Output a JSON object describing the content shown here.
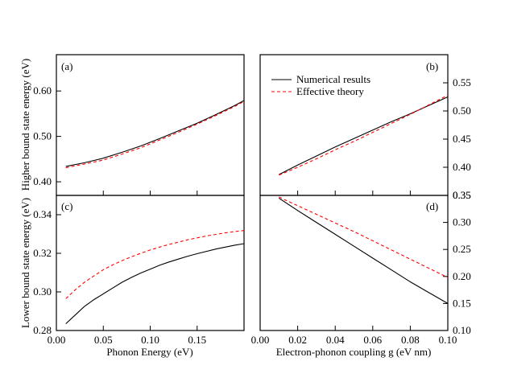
{
  "colors": {
    "numerical": "#000000",
    "effective": "#ff0000"
  },
  "chart_data": [
    {
      "type": "line",
      "panel": "a",
      "panel_label": "(a)",
      "ylabel": "Higher bound state energy (eV)",
      "xlim": [
        0.0,
        0.2
      ],
      "ylim": [
        0.37,
        0.68
      ],
      "yticks": [
        0.4,
        0.5,
        0.6
      ],
      "ytick_labels": [
        "0.40",
        "0.50",
        "0.60"
      ],
      "xticks": [
        0.0,
        0.05,
        0.1,
        0.15
      ],
      "series": [
        {
          "name": "Numerical results",
          "style": "solid",
          "x": [
            0.01,
            0.03,
            0.05,
            0.07,
            0.09,
            0.11,
            0.13,
            0.15,
            0.17,
            0.19,
            0.2
          ],
          "y": [
            0.434,
            0.442,
            0.452,
            0.465,
            0.479,
            0.495,
            0.512,
            0.529,
            0.548,
            0.568,
            0.579
          ]
        },
        {
          "name": "Effective theory",
          "style": "dashed",
          "x": [
            0.01,
            0.03,
            0.05,
            0.07,
            0.09,
            0.11,
            0.13,
            0.15,
            0.17,
            0.19,
            0.2
          ],
          "y": [
            0.431,
            0.439,
            0.448,
            0.461,
            0.475,
            0.492,
            0.509,
            0.527,
            0.546,
            0.566,
            0.577
          ]
        }
      ]
    },
    {
      "type": "line",
      "panel": "b",
      "panel_label": "(b)",
      "xlim": [
        0.0,
        0.1
      ],
      "ylim": [
        0.35,
        0.6
      ],
      "yticks": [
        0.35,
        0.4,
        0.45,
        0.5,
        0.55
      ],
      "ytick_labels": [
        "0.35",
        "0.40",
        "0.45",
        "0.50",
        "0.55"
      ],
      "xticks": [
        0.0,
        0.02,
        0.04,
        0.06,
        0.08,
        0.1
      ],
      "legend": [
        "Numerical results",
        "Effective theory"
      ],
      "series": [
        {
          "name": "Numerical results",
          "style": "solid",
          "x": [
            0.01,
            0.02,
            0.03,
            0.04,
            0.05,
            0.06,
            0.07,
            0.08,
            0.09,
            0.1
          ],
          "y": [
            0.387,
            0.404,
            0.42,
            0.436,
            0.451,
            0.466,
            0.481,
            0.495,
            0.51,
            0.525
          ]
        },
        {
          "name": "Effective theory",
          "style": "dashed",
          "x": [
            0.01,
            0.02,
            0.03,
            0.04,
            0.05,
            0.06,
            0.07,
            0.08,
            0.09,
            0.1
          ],
          "y": [
            0.386,
            0.4,
            0.415,
            0.431,
            0.446,
            0.462,
            0.478,
            0.494,
            0.511,
            0.528
          ]
        }
      ]
    },
    {
      "type": "line",
      "panel": "c",
      "panel_label": "(c)",
      "ylabel": "Lower bound state energy (eV)",
      "xlabel": "Phonon Energy (eV)",
      "xlim": [
        0.0,
        0.2
      ],
      "ylim": [
        0.28,
        0.35
      ],
      "yticks": [
        0.28,
        0.3,
        0.32,
        0.34
      ],
      "ytick_labels": [
        "0.28",
        "0.30",
        "0.32",
        "0.34"
      ],
      "xticks": [
        0.0,
        0.05,
        0.1,
        0.15
      ],
      "xtick_labels": [
        "0.00",
        "0.05",
        "0.10",
        "0.15"
      ],
      "series": [
        {
          "name": "Numerical results",
          "style": "solid",
          "x": [
            0.01,
            0.02,
            0.03,
            0.04,
            0.05,
            0.06,
            0.07,
            0.08,
            0.09,
            0.1,
            0.11,
            0.12,
            0.13,
            0.14,
            0.15,
            0.16,
            0.17,
            0.18,
            0.19,
            0.2
          ],
          "y": [
            0.2835,
            0.288,
            0.2925,
            0.296,
            0.299,
            0.302,
            0.305,
            0.3075,
            0.3098,
            0.3118,
            0.3138,
            0.3155,
            0.317,
            0.3185,
            0.3198,
            0.321,
            0.3222,
            0.3232,
            0.3242,
            0.325
          ]
        },
        {
          "name": "Effective theory",
          "style": "dashed",
          "x": [
            0.01,
            0.02,
            0.03,
            0.04,
            0.05,
            0.06,
            0.07,
            0.08,
            0.09,
            0.1,
            0.11,
            0.12,
            0.13,
            0.14,
            0.15,
            0.16,
            0.17,
            0.18,
            0.19,
            0.2
          ],
          "y": [
            0.2965,
            0.301,
            0.305,
            0.3083,
            0.3115,
            0.314,
            0.3162,
            0.3182,
            0.32,
            0.3217,
            0.3232,
            0.3246,
            0.3258,
            0.327,
            0.328,
            0.329,
            0.3298,
            0.3306,
            0.3313,
            0.3318
          ]
        }
      ]
    },
    {
      "type": "line",
      "panel": "d",
      "panel_label": "(d)",
      "xlabel": "Electron-phonon coupling g (eV nm)",
      "xlim": [
        0.0,
        0.1
      ],
      "ylim": [
        0.1,
        0.35
      ],
      "yticks": [
        0.1,
        0.15,
        0.2,
        0.25,
        0.3,
        0.35
      ],
      "ytick_labels": [
        "0.10",
        "0.15",
        "0.20",
        "0.25",
        "0.30",
        "0.35"
      ],
      "xticks": [
        0.0,
        0.02,
        0.04,
        0.06,
        0.08,
        0.1
      ],
      "xtick_labels": [
        "0.00",
        "0.02",
        "0.04",
        "0.06",
        "0.08",
        "0.10"
      ],
      "series": [
        {
          "name": "Numerical results",
          "style": "solid",
          "x": [
            0.01,
            0.02,
            0.03,
            0.04,
            0.05,
            0.06,
            0.07,
            0.08,
            0.09,
            0.1
          ],
          "y": [
            0.345,
            0.322,
            0.3,
            0.278,
            0.256,
            0.234,
            0.212,
            0.19,
            0.17,
            0.15
          ]
        },
        {
          "name": "Effective theory",
          "style": "dashed",
          "x": [
            0.01,
            0.02,
            0.03,
            0.04,
            0.05,
            0.06,
            0.07,
            0.08,
            0.09,
            0.1
          ],
          "y": [
            0.347,
            0.331,
            0.315,
            0.299,
            0.283,
            0.266,
            0.249,
            0.232,
            0.215,
            0.198
          ]
        }
      ]
    }
  ]
}
